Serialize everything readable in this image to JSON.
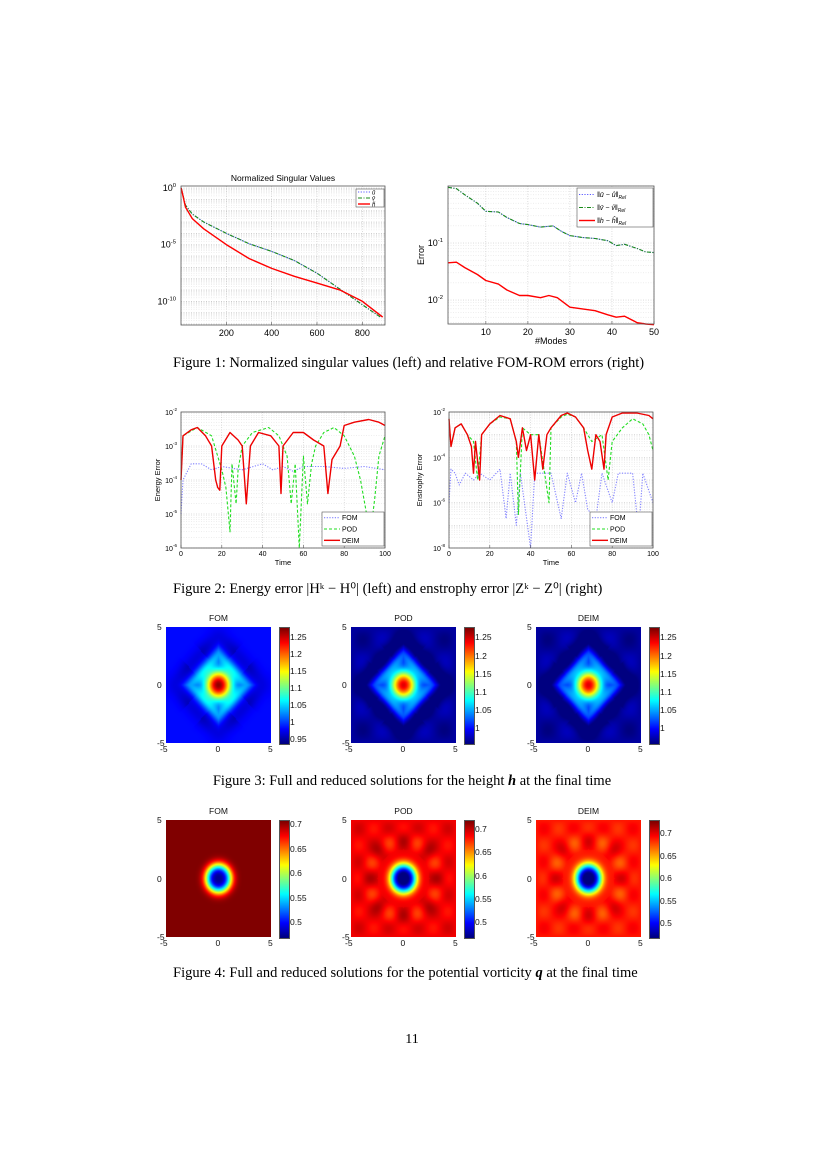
{
  "page_number": "11",
  "captions": {
    "fig1": "Figure 1: Normalized singular values (left) and relative FOM-ROM errors (right)",
    "fig2": "Figure 2: Energy error |Hᵏ − H⁰| (left) and enstrophy error |Zᵏ − Z⁰| (right)",
    "fig3_pre": "Figure 3: Full and reduced solutions for the height ",
    "fig3_sym": "h",
    "fig3_post": " at the final time",
    "fig4_pre": "Figure 4: Full and reduced solutions for the potential vorticity ",
    "fig4_sym": "q",
    "fig4_post": " at the final time"
  },
  "colors": {
    "u": "#5a5aff",
    "v": "#1a8a1a",
    "h": "#ff0000",
    "fom": "#8080ff",
    "pod": "#22dd22",
    "deim": "#ee0000"
  },
  "chart_data": [
    {
      "type": "line",
      "title": "Normalized Singular Values",
      "xlabel": "",
      "ylabel": "",
      "yscale": "log",
      "xlim": [
        0,
        900
      ],
      "ylim": [
        8e-13,
        1.5
      ],
      "xticks": [
        "200",
        "400",
        "600",
        "800"
      ],
      "xtick_values": [
        200,
        400,
        600,
        800
      ],
      "yticks": [
        "0",
        "-5",
        "-10"
      ],
      "ytick_values": [
        1,
        1e-05,
        1e-10
      ],
      "grid": true,
      "legend": "top-right",
      "series": [
        {
          "name": "ũ",
          "color": "#5a5aff",
          "style": "dotted",
          "x": [
            1,
            20,
            50,
            100,
            200,
            300,
            400,
            500,
            600,
            700,
            800,
            880
          ],
          "y": [
            1,
            0.03,
            0.005,
            0.001,
            0.0001,
            1.2e-05,
            2.5e-06,
            4e-07,
            3e-08,
            1.2e-09,
            5e-11,
            4e-12
          ]
        },
        {
          "name": "ṽ",
          "color": "#1a8a1a",
          "style": "dashdot",
          "x": [
            1,
            20,
            50,
            100,
            200,
            300,
            400,
            500,
            600,
            700,
            800,
            880
          ],
          "y": [
            1,
            0.03,
            0.005,
            0.001,
            0.0001,
            1.2e-05,
            2.5e-06,
            4e-07,
            3e-08,
            1.2e-09,
            5e-11,
            4e-12
          ]
        },
        {
          "name": "h̃",
          "color": "#ff0000",
          "style": "solid",
          "x": [
            1,
            20,
            50,
            100,
            200,
            300,
            400,
            500,
            600,
            700,
            800,
            890
          ],
          "y": [
            1,
            0.02,
            0.002,
            0.00025,
            1e-05,
            6e-07,
            8e-08,
            1.6e-08,
            4e-09,
            1e-09,
            1e-10,
            4e-12
          ]
        }
      ]
    },
    {
      "type": "line",
      "title": "",
      "xlabel": "#Modes",
      "ylabel": "Error",
      "yscale": "log",
      "xlim": [
        1,
        50
      ],
      "ylim": [
        0.0038,
        1
      ],
      "xticks": [
        "10",
        "20",
        "30",
        "40",
        "50"
      ],
      "xtick_values": [
        10,
        20,
        30,
        40,
        50
      ],
      "yticks": [
        "-1",
        "-2"
      ],
      "ytick_values": [
        0.1,
        0.01
      ],
      "grid": true,
      "legend": "top-right",
      "series": [
        {
          "name": "‖ū − û‖",
          "sub": "Rel",
          "color": "#5a5aff",
          "style": "dotted",
          "x": [
            1,
            3,
            5,
            8,
            10,
            13,
            15,
            18,
            20,
            23,
            26,
            28,
            30,
            33,
            36,
            39,
            41,
            43,
            46,
            48,
            50
          ],
          "y": [
            0.95,
            0.9,
            0.7,
            0.5,
            0.36,
            0.35,
            0.28,
            0.22,
            0.21,
            0.19,
            0.2,
            0.16,
            0.135,
            0.125,
            0.12,
            0.11,
            0.09,
            0.095,
            0.08,
            0.07,
            0.068
          ]
        },
        {
          "name": "‖v̄ − v̂‖",
          "sub": "Rel",
          "color": "#1a8a1a",
          "style": "dashdot",
          "x": [
            1,
            3,
            5,
            8,
            10,
            13,
            15,
            18,
            20,
            23,
            26,
            28,
            30,
            33,
            36,
            39,
            41,
            43,
            46,
            48,
            50
          ],
          "y": [
            0.95,
            0.9,
            0.7,
            0.5,
            0.36,
            0.35,
            0.28,
            0.22,
            0.21,
            0.19,
            0.2,
            0.16,
            0.135,
            0.125,
            0.12,
            0.11,
            0.09,
            0.095,
            0.08,
            0.07,
            0.068
          ]
        },
        {
          "name": "‖h − ĥ‖",
          "sub": "Rel",
          "color": "#ff0000",
          "style": "solid",
          "x": [
            1,
            3,
            5,
            8,
            10,
            13,
            15,
            18,
            20,
            23,
            25,
            27,
            30,
            33,
            36,
            39,
            41,
            43,
            46,
            48,
            50
          ],
          "y": [
            0.045,
            0.046,
            0.037,
            0.028,
            0.022,
            0.019,
            0.015,
            0.012,
            0.012,
            0.011,
            0.012,
            0.011,
            0.0075,
            0.007,
            0.0065,
            0.0055,
            0.005,
            0.0052,
            0.004,
            0.0038,
            0.0037
          ]
        }
      ]
    },
    {
      "type": "line",
      "title": "",
      "xlabel": "Time",
      "ylabel": "Energy Error",
      "yscale": "log",
      "xlim": [
        0,
        100
      ],
      "ylim": [
        1e-06,
        0.01
      ],
      "xticks": [
        "0",
        "20",
        "40",
        "60",
        "80",
        "100"
      ],
      "xtick_values": [
        0,
        20,
        40,
        60,
        80,
        100
      ],
      "yticks": [
        "-2",
        "-3",
        "-4",
        "-5",
        "-6"
      ],
      "ytick_values": [
        0.01,
        0.001,
        0.0001,
        1e-05,
        1e-06
      ],
      "grid": true,
      "legend": "bottom-right",
      "series": [
        {
          "name": "FOM",
          "color": "#8080ff",
          "style": "dotted",
          "x": [
            0,
            1,
            5,
            10,
            15,
            20,
            30,
            40,
            45,
            50,
            55,
            60,
            70,
            80,
            90,
            100
          ],
          "y": [
            1e-05,
            0.0001,
            0.0003,
            0.0003,
            0.0002,
            0.00025,
            0.0002,
            0.0003,
            0.0002,
            0.00025,
            0.00018,
            0.00025,
            0.00025,
            0.00022,
            0.00025,
            0.0002
          ]
        },
        {
          "name": "POD",
          "color": "#22dd22",
          "style": "dashed",
          "x": [
            0,
            1,
            8,
            15,
            18,
            20,
            22,
            24,
            25,
            27,
            28,
            30,
            35,
            43,
            48,
            52,
            54,
            56,
            58,
            60,
            62,
            64,
            66,
            70,
            75,
            80,
            85,
            88,
            91,
            93,
            95,
            97,
            100
          ],
          "y": [
            0.0001,
            0.002,
            0.0035,
            0.002,
            0.0005,
            0.0002,
            6e-05,
            3e-06,
            0.0003,
            2e-05,
            0.0002,
            0.001,
            0.0025,
            0.0035,
            0.002,
            0.0005,
            2e-05,
            0.0003,
            1e-06,
            0.0005,
            2e-05,
            0.0003,
            0.001,
            0.0025,
            0.0035,
            0.002,
            0.0005,
            0.0001,
            1e-05,
            3e-06,
            3e-05,
            0.0005,
            0.002
          ]
        },
        {
          "name": "DEIM",
          "color": "#ee0000",
          "style": "solid",
          "x": [
            0,
            1,
            5,
            8,
            12,
            15,
            17,
            18,
            19,
            20,
            24,
            28,
            30,
            32,
            34,
            38,
            44,
            48,
            49,
            50,
            55,
            60,
            65,
            70,
            72,
            74,
            78,
            80,
            85,
            92,
            97,
            100
          ],
          "y": [
            0.0001,
            0.002,
            0.003,
            0.0035,
            0.002,
            0.001,
            0.0001,
            6e-05,
            5e-05,
            0.001,
            0.0025,
            0.0015,
            0.001,
            2e-05,
            0.001,
            0.0025,
            0.002,
            0.001,
            4e-05,
            0.001,
            0.0025,
            0.0025,
            0.0015,
            0.001,
            4e-05,
            0.0004,
            0.001,
            0.004,
            0.005,
            0.006,
            0.005,
            0.004
          ]
        }
      ]
    },
    {
      "type": "line",
      "title": "",
      "xlabel": "Time",
      "ylabel": "Enstrophy Error",
      "yscale": "log",
      "xlim": [
        0,
        100
      ],
      "ylim": [
        1e-08,
        0.01
      ],
      "xticks": [
        "0",
        "20",
        "40",
        "60",
        "80",
        "100"
      ],
      "xtick_values": [
        0,
        20,
        40,
        60,
        80,
        100
      ],
      "yticks": [
        "-2",
        "-4",
        "-6",
        "-8"
      ],
      "ytick_values": [
        0.01,
        0.0001,
        1e-06,
        1e-08
      ],
      "grid": true,
      "legend": "bottom-right",
      "series": [
        {
          "name": "FOM",
          "color": "#8080ff",
          "style": "dotted",
          "x": [
            0,
            1,
            3,
            5,
            8,
            12,
            15,
            20,
            25,
            28,
            30,
            33,
            35,
            40,
            42,
            50,
            55,
            58,
            62,
            65,
            68,
            72,
            75,
            80,
            83,
            90,
            93,
            95,
            100
          ],
          "y": [
            1e-06,
            3e-05,
            2e-05,
            6e-06,
            2e-05,
            1e-05,
            2e-05,
            1e-05,
            3e-05,
            2e-07,
            2e-05,
            1e-07,
            2e-05,
            1e-08,
            2e-05,
            2e-05,
            2e-07,
            2e-05,
            1e-06,
            2e-05,
            5e-07,
            2e-07,
            2e-05,
            1e-06,
            2e-05,
            2e-05,
            5e-08,
            2e-05,
            1e-06
          ]
        },
        {
          "name": "POD",
          "color": "#22dd22",
          "style": "dashed",
          "x": [
            0,
            1,
            3,
            6,
            9,
            12,
            14,
            16,
            20,
            25,
            30,
            33,
            34,
            36,
            40,
            44,
            49,
            50,
            55,
            58,
            62,
            66,
            70,
            75,
            78,
            80,
            85,
            90,
            95,
            98,
            100
          ],
          "y": [
            0.005,
            0.0003,
            0.002,
            0.003,
            0.001,
            0.0005,
            1e-05,
            0.001,
            0.003,
            0.006,
            0.005,
            0.0005,
            3e-07,
            0.002,
            0.001,
            0.001,
            1e-06,
            0.002,
            0.006,
            0.008,
            0.006,
            0.002,
            0.0005,
            0.001,
            1e-05,
            0.0005,
            0.002,
            0.005,
            0.003,
            0.001,
            0.0002
          ]
        },
        {
          "name": "DEIM",
          "color": "#ee0000",
          "style": "solid",
          "x": [
            0,
            1,
            3,
            6,
            9,
            11,
            12,
            13,
            15,
            16,
            20,
            25,
            30,
            33,
            34,
            36,
            38,
            40,
            42,
            44,
            46,
            48,
            50,
            55,
            58,
            62,
            66,
            68,
            70,
            72,
            74,
            76,
            77,
            80,
            85,
            92,
            98,
            100
          ],
          "y": [
            0.005,
            0.0003,
            0.002,
            0.003,
            0.001,
            0.0003,
            2e-05,
            0.0005,
            1e-05,
            0.001,
            0.003,
            0.007,
            0.005,
            0.0005,
            0.0001,
            0.002,
            0.0002,
            0.001,
            1e-05,
            0.001,
            3e-05,
            0.001,
            0.002,
            0.007,
            0.009,
            0.006,
            0.002,
            0.0002,
            3e-05,
            0.001,
            0.0005,
            3e-05,
            0.001,
            0.006,
            0.009,
            0.009,
            0.007,
            0.005
          ]
        }
      ]
    },
    {
      "type": "heatmap",
      "title": "FOM",
      "field": "height h",
      "xticks": [
        "-5",
        "0",
        "5"
      ],
      "yticks": [
        "5",
        "0",
        "-5"
      ],
      "crange": [
        0.94,
        1.28
      ],
      "cticks": [
        "0.95",
        "1",
        "1.05",
        "1.1",
        "1.15",
        "1.2",
        "1.25"
      ],
      "ctick_values": [
        0.95,
        1,
        1.05,
        1.1,
        1.15,
        1.2,
        1.25
      ],
      "colormap": "jet"
    },
    {
      "type": "heatmap",
      "title": "POD",
      "field": "height h",
      "xticks": [
        "-5",
        "0",
        "5"
      ],
      "yticks": [
        "5",
        "0",
        "-5"
      ],
      "crange": [
        0.96,
        1.28
      ],
      "cticks": [
        "1",
        "1.05",
        "1.1",
        "1.15",
        "1.2",
        "1.25"
      ],
      "ctick_values": [
        1,
        1.05,
        1.1,
        1.15,
        1.2,
        1.25
      ],
      "colormap": "jet"
    },
    {
      "type": "heatmap",
      "title": "DEIM",
      "field": "height h",
      "xticks": [
        "-5",
        "0",
        "5"
      ],
      "yticks": [
        "5",
        "0",
        "-5"
      ],
      "crange": [
        0.96,
        1.28
      ],
      "cticks": [
        "1",
        "1.05",
        "1.1",
        "1.15",
        "1.2",
        "1.25"
      ],
      "ctick_values": [
        1,
        1.05,
        1.1,
        1.15,
        1.2,
        1.25
      ],
      "colormap": "jet"
    },
    {
      "type": "heatmap",
      "title": "FOM",
      "field": "potential vorticity q",
      "xticks": [
        "-5",
        "0",
        "5"
      ],
      "yticks": [
        "5",
        "0",
        "-5"
      ],
      "crange": [
        0.47,
        0.71
      ],
      "cticks": [
        "0.5",
        "0.55",
        "0.6",
        "0.65",
        "0.7"
      ],
      "ctick_values": [
        0.5,
        0.55,
        0.6,
        0.65,
        0.7
      ],
      "colormap": "jet"
    },
    {
      "type": "heatmap",
      "title": "POD",
      "field": "potential vorticity q",
      "xticks": [
        "-5",
        "0",
        "5"
      ],
      "yticks": [
        "5",
        "0",
        "-5"
      ],
      "crange": [
        0.47,
        0.72
      ],
      "cticks": [
        "0.5",
        "0.55",
        "0.6",
        "0.65",
        "0.7"
      ],
      "ctick_values": [
        0.5,
        0.55,
        0.6,
        0.65,
        0.7
      ],
      "colormap": "jet"
    },
    {
      "type": "heatmap",
      "title": "DEIM",
      "field": "potential vorticity q",
      "xticks": [
        "-5",
        "0",
        "5"
      ],
      "yticks": [
        "5",
        "0",
        "-5"
      ],
      "crange": [
        0.47,
        0.73
      ],
      "cticks": [
        "0.5",
        "0.55",
        "0.6",
        "0.65",
        "0.7"
      ],
      "ctick_values": [
        0.5,
        0.55,
        0.6,
        0.65,
        0.7
      ],
      "colormap": "jet"
    }
  ]
}
